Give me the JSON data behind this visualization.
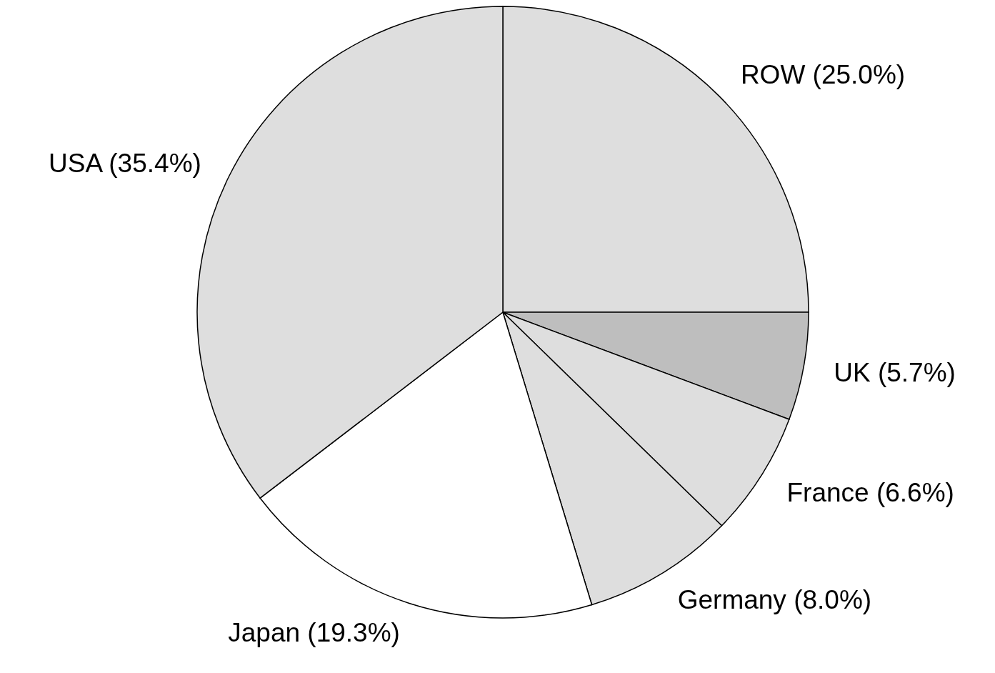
{
  "chart_data": {
    "type": "pie",
    "categories": [
      "ROW",
      "UK",
      "France",
      "Germany",
      "Japan",
      "USA"
    ],
    "values": [
      25.0,
      5.7,
      6.6,
      8.0,
      19.3,
      35.4
    ],
    "value_labels": [
      "(25.0%)",
      "(5.7%)",
      "(6.6%)",
      "(8.0%)",
      "(19.3%)",
      "(35.4%)"
    ],
    "colors": [
      "#dedede",
      "#bebebe",
      "#dedede",
      "#dedede",
      "#ffffff",
      "#dedede"
    ]
  }
}
